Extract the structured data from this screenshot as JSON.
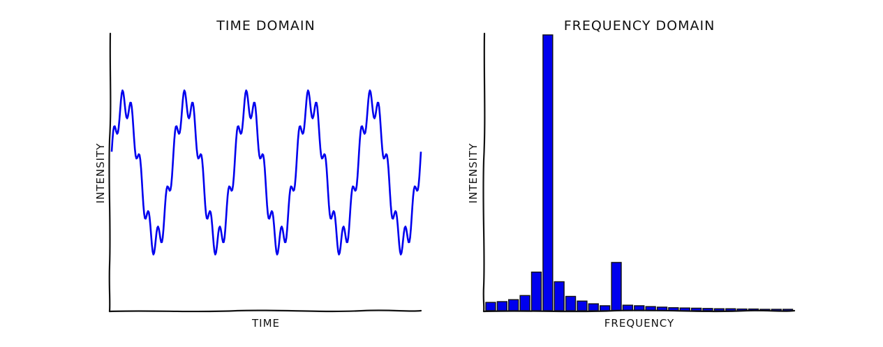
{
  "chart_data": [
    {
      "type": "line",
      "title": "TIME DOMAIN",
      "xlabel": "TIME",
      "ylabel": "INTENSITY",
      "x_range": [
        0,
        5
      ],
      "ylim": [
        -1.5,
        1.5
      ],
      "grid": false,
      "series": [
        {
          "color": "#0000ee",
          "description": "sum of a fundamental sinusoid (5 cycles, amplitude 1) and a higher harmonic (amplitude ~0.2)",
          "components": [
            {
              "cycles": 5,
              "amplitude": 1.0
            },
            {
              "cycles": 35,
              "amplitude": 0.2
            }
          ],
          "samples": 400
        }
      ]
    },
    {
      "type": "bar",
      "title": "FREQUENCY DOMAIN",
      "xlabel": "FREQUENCY",
      "ylabel": "INTENSITY",
      "ylim": [
        0,
        1.0
      ],
      "grid": false,
      "series": [
        {
          "color": "#0000ee",
          "values": [
            0.03,
            0.033,
            0.04,
            0.055,
            0.14,
            1.0,
            0.105,
            0.052,
            0.035,
            0.025,
            0.018,
            0.175,
            0.02,
            0.018,
            0.015,
            0.013,
            0.011,
            0.01,
            0.009,
            0.008,
            0.007,
            0.007,
            0.006,
            0.006,
            0.005,
            0.005,
            0.005
          ]
        }
      ]
    }
  ]
}
